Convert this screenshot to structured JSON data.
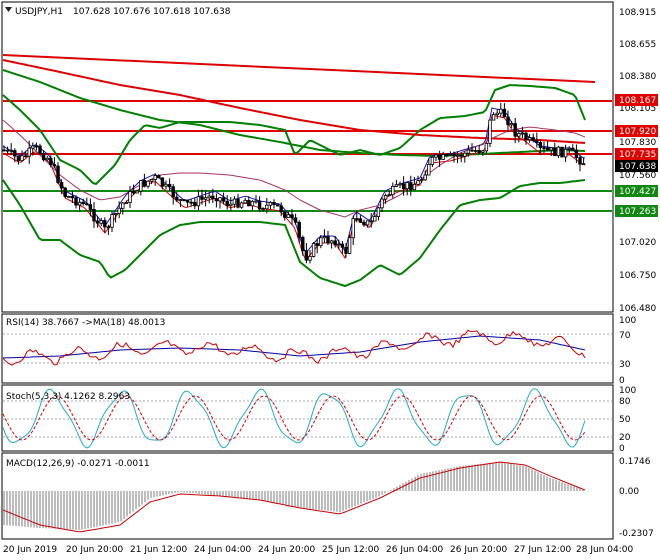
{
  "header": {
    "symbol_label": "USDJPY,H1",
    "ohlc": "107.628 107.676 107.618 107.638",
    "icon": "triangle-down-icon"
  },
  "price_axis": {
    "ticks": [
      "108.915",
      "108.655",
      "108.380",
      "108.105",
      "107.830",
      "107.560",
      "107.020",
      "106.750",
      "106.480"
    ],
    "levels": [
      {
        "value": "108.167",
        "color": "#e00000"
      },
      {
        "value": "107.920",
        "color": "#e00000"
      },
      {
        "value": "107.735",
        "color": "#e00000"
      },
      {
        "value": "107.638",
        "color": "#000000"
      },
      {
        "value": "107.427",
        "color": "#118811"
      },
      {
        "value": "107.263",
        "color": "#118811"
      }
    ]
  },
  "rsi": {
    "label": "RSI(14) 38.7667  ->MA(18) 48.0013",
    "ticks": [
      "100",
      "70",
      "30",
      "0"
    ]
  },
  "stoch": {
    "label": "Stoch(5,3,3) 4.1262 8.2963",
    "ticks": [
      "100",
      "80",
      "50",
      "20",
      "0"
    ]
  },
  "macd": {
    "label": "MACD(12,26,9) -0.0271 -0.0011",
    "ticks": [
      "0.1746",
      "0.00",
      "-0.2307"
    ]
  },
  "time_axis": [
    "20 Jun 2019",
    "20 Jun 20:00",
    "21 Jun 12:00",
    "24 Jun 04:00",
    "24 Jun 20:00",
    "25 Jun 12:00",
    "26 Jun 04:00",
    "26 Jun 20:00",
    "27 Jun 12:00",
    "28 Jun 04:00"
  ],
  "colors": {
    "support": "#118811",
    "resistance": "#e00000",
    "bollinger": "#008000",
    "ma_long": "#dd0000",
    "ma_fast": "#1010cc",
    "rsi_line": "#cc0000",
    "rsi_ma": "#0000aa",
    "stoch_main": "#22aacc",
    "stoch_signal": "#cc0000",
    "macd_hist": "#a0a0a0",
    "macd_signal": "#cc0000"
  }
}
